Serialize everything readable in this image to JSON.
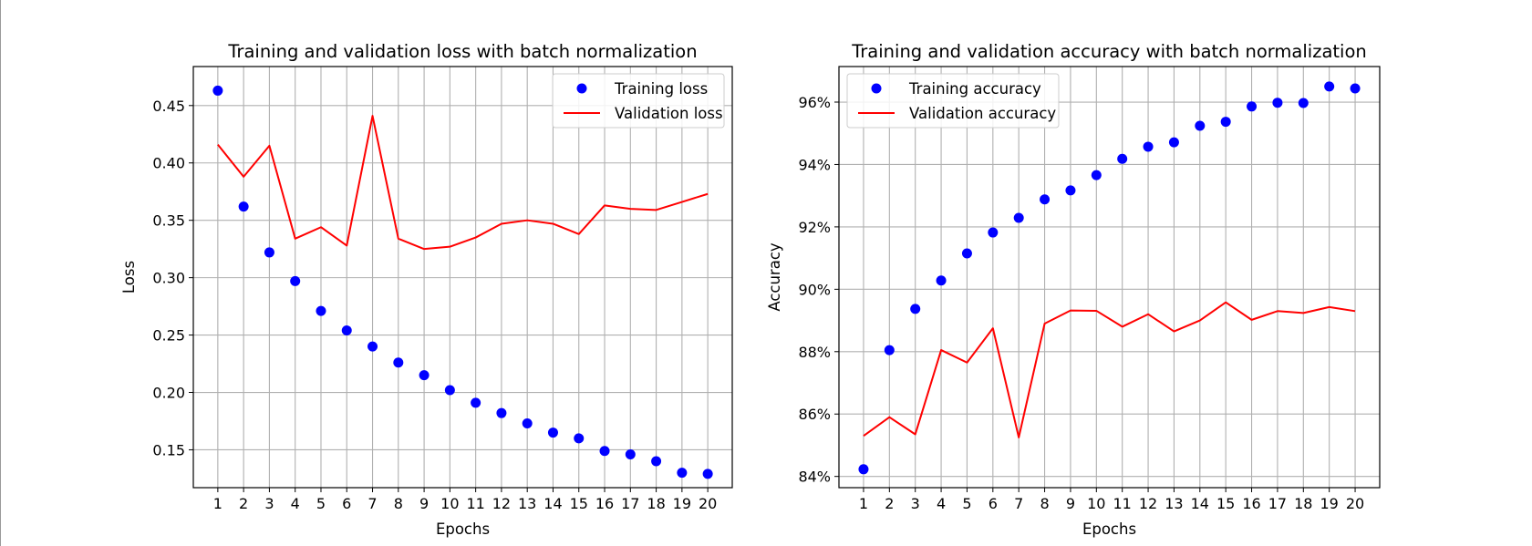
{
  "chart_data": [
    {
      "type": "scatter+line",
      "title": "Training and validation loss with batch normalization",
      "xlabel": "Epochs",
      "ylabel": "Loss",
      "x": [
        1,
        2,
        3,
        4,
        5,
        6,
        7,
        8,
        9,
        10,
        11,
        12,
        13,
        14,
        15,
        16,
        17,
        18,
        19,
        20
      ],
      "xlim": [
        0.05,
        20.95
      ],
      "ylim": [
        0.117,
        0.484
      ],
      "yticks": [
        0.15,
        0.2,
        0.25,
        0.3,
        0.35,
        0.4,
        0.45
      ],
      "ytick_labels": [
        "0.15",
        "0.20",
        "0.25",
        "0.30",
        "0.35",
        "0.40",
        "0.45"
      ],
      "grid": true,
      "legend_position": "top-right",
      "series": [
        {
          "name": "Training loss",
          "style": "points",
          "color": "#0000ff",
          "values": [
            0.463,
            0.362,
            0.322,
            0.297,
            0.271,
            0.254,
            0.24,
            0.226,
            0.215,
            0.202,
            0.191,
            0.182,
            0.173,
            0.165,
            0.16,
            0.149,
            0.146,
            0.14,
            0.13,
            0.129
          ]
        },
        {
          "name": "Validation loss",
          "style": "line",
          "color": "#ff0000",
          "values": [
            0.416,
            0.388,
            0.415,
            0.334,
            0.344,
            0.328,
            0.441,
            0.334,
            0.325,
            0.327,
            0.335,
            0.347,
            0.35,
            0.347,
            0.338,
            0.363,
            0.36,
            0.359,
            0.366,
            0.373
          ]
        }
      ]
    },
    {
      "type": "scatter+line",
      "title": "Training and validation accuracy with batch normalization",
      "xlabel": "Epochs",
      "ylabel": "Accuracy",
      "x": [
        1,
        2,
        3,
        4,
        5,
        6,
        7,
        8,
        9,
        10,
        11,
        12,
        13,
        14,
        15,
        16,
        17,
        18,
        19,
        20
      ],
      "xlim": [
        0.05,
        20.95
      ],
      "ylim": [
        83.64,
        97.14
      ],
      "yticks": [
        84,
        86,
        88,
        90,
        92,
        94,
        96
      ],
      "ytick_labels": [
        "84%",
        "86%",
        "88%",
        "90%",
        "92%",
        "94%",
        "96%"
      ],
      "grid": true,
      "legend_position": "top-left",
      "series": [
        {
          "name": "Training accuracy",
          "style": "points",
          "color": "#0000ff",
          "values": [
            84.23,
            88.05,
            89.37,
            90.28,
            91.15,
            91.82,
            92.29,
            92.88,
            93.17,
            93.66,
            94.18,
            94.57,
            94.71,
            95.24,
            95.37,
            95.86,
            95.98,
            95.97,
            96.5,
            96.44
          ]
        },
        {
          "name": "Validation accuracy",
          "style": "line",
          "color": "#ff0000",
          "values": [
            85.3,
            85.9,
            85.35,
            88.05,
            87.65,
            88.75,
            85.25,
            88.9,
            89.32,
            89.31,
            88.8,
            89.2,
            88.65,
            89.0,
            89.58,
            89.02,
            89.3,
            89.24,
            89.43,
            89.3
          ]
        }
      ]
    }
  ]
}
